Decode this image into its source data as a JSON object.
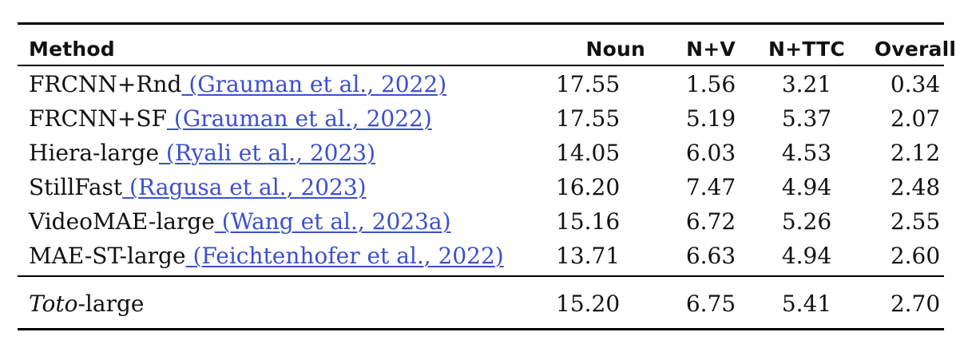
{
  "table": {
    "headers": {
      "method": "Method",
      "noun": "Noun",
      "nv": "N+V",
      "nttc": "N+TTC",
      "overall": "Overall"
    },
    "rows": [
      {
        "method": "FRCNN+Rnd",
        "citation": " (Grauman et al., 2022)",
        "noun": "17.55",
        "nv": "1.56",
        "nttc": "3.21",
        "overall": "0.34"
      },
      {
        "method": "FRCNN+SF",
        "citation": " (Grauman et al., 2022)",
        "noun": "17.55",
        "nv": "5.19",
        "nttc": "5.37",
        "overall": "2.07"
      },
      {
        "method": "Hiera-large",
        "citation": " (Ryali et al., 2023)",
        "noun": "14.05",
        "nv": "6.03",
        "nttc": "4.53",
        "overall": "2.12"
      },
      {
        "method": "StillFast",
        "citation": " (Ragusa et al., 2023)",
        "noun": "16.20",
        "nv": "7.47",
        "nttc": "4.94",
        "overall": "2.48"
      },
      {
        "method": "VideoMAE-large",
        "citation": " (Wang et al., 2023a)",
        "noun": "15.16",
        "nv": "6.72",
        "nttc": "5.26",
        "overall": "2.55"
      },
      {
        "method": "MAE-ST-large",
        "citation": " (Feichtenhofer et al., 2022)",
        "noun": "13.71",
        "nv": "6.63",
        "nttc": "4.94",
        "overall": "2.60"
      }
    ],
    "final_row": {
      "method_italic": "Toto",
      "method_rest": "-large",
      "noun": "15.20",
      "nv": "6.75",
      "nttc": "5.41",
      "overall": "2.70"
    }
  }
}
